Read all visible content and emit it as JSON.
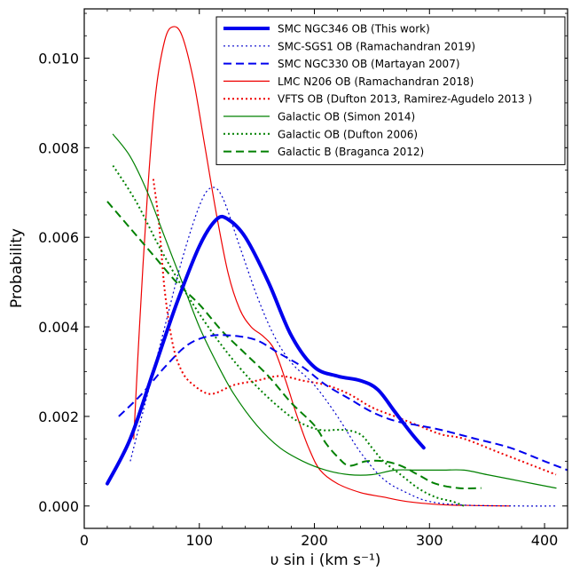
{
  "chart_data": {
    "type": "line",
    "xlabel": "υ sin i (km s⁻¹)",
    "ylabel": "Probability",
    "xlim": [
      0,
      420
    ],
    "ylim": [
      -0.0005,
      0.0111
    ],
    "xticks": [
      0,
      100,
      200,
      300,
      400
    ],
    "xtick_labels": [
      "0",
      "100",
      "200",
      "300",
      "400"
    ],
    "yticks": [
      0.0,
      0.002,
      0.004,
      0.006,
      0.008,
      0.01
    ],
    "ytick_labels": [
      "0.000",
      "0.002",
      "0.004",
      "0.006",
      "0.008",
      "0.010"
    ],
    "grid": false,
    "legend_position": "top-right",
    "series": [
      {
        "name": "SMC NGC346 OB (This work)",
        "color": "#0000ee",
        "style": "solid",
        "width": 4,
        "points": [
          [
            20,
            0.0005
          ],
          [
            40,
            0.0015
          ],
          [
            60,
            0.003
          ],
          [
            80,
            0.0045
          ],
          [
            100,
            0.0058
          ],
          [
            115,
            0.0064
          ],
          [
            125,
            0.0064
          ],
          [
            140,
            0.006
          ],
          [
            160,
            0.005
          ],
          [
            180,
            0.0038
          ],
          [
            200,
            0.0031
          ],
          [
            220,
            0.0029
          ],
          [
            240,
            0.0028
          ],
          [
            255,
            0.0026
          ],
          [
            270,
            0.0021
          ],
          [
            285,
            0.0016
          ],
          [
            295,
            0.0013
          ]
        ]
      },
      {
        "name": "SMC-SGS1 OB (Ramachandran 2019)",
        "color": "#0000cc",
        "style": "dotted",
        "width": 1.2,
        "points": [
          [
            40,
            0.001
          ],
          [
            55,
            0.0025
          ],
          [
            70,
            0.004
          ],
          [
            85,
            0.0055
          ],
          [
            100,
            0.0067
          ],
          [
            110,
            0.0071
          ],
          [
            120,
            0.0069
          ],
          [
            135,
            0.0058
          ],
          [
            150,
            0.0047
          ],
          [
            165,
            0.0038
          ],
          [
            180,
            0.0032
          ],
          [
            200,
            0.0027
          ],
          [
            220,
            0.002
          ],
          [
            240,
            0.0012
          ],
          [
            260,
            0.0006
          ],
          [
            280,
            0.0003
          ],
          [
            300,
            0.0001
          ],
          [
            330,
            2e-05
          ],
          [
            380,
            0.0
          ],
          [
            410,
            0.0
          ]
        ]
      },
      {
        "name": "SMC NGC330 OB (Martayan 2007)",
        "color": "#0000ee",
        "style": "dashed",
        "width": 2,
        "points": [
          [
            30,
            0.002
          ],
          [
            50,
            0.0025
          ],
          [
            70,
            0.0031
          ],
          [
            90,
            0.0036
          ],
          [
            110,
            0.0038
          ],
          [
            130,
            0.0038
          ],
          [
            150,
            0.0037
          ],
          [
            170,
            0.0034
          ],
          [
            190,
            0.0031
          ],
          [
            210,
            0.0027
          ],
          [
            230,
            0.0024
          ],
          [
            250,
            0.0021
          ],
          [
            270,
            0.0019
          ],
          [
            290,
            0.0018
          ],
          [
            310,
            0.0017
          ],
          [
            340,
            0.0015
          ],
          [
            370,
            0.0013
          ],
          [
            400,
            0.001
          ],
          [
            420,
            0.0008
          ]
        ]
      },
      {
        "name": "LMC N206 OB (Ramachandran 2018)",
        "color": "#ee0000",
        "style": "solid",
        "width": 1.2,
        "points": [
          [
            43,
            0.0015
          ],
          [
            48,
            0.004
          ],
          [
            55,
            0.007
          ],
          [
            62,
            0.0092
          ],
          [
            70,
            0.0104
          ],
          [
            77,
            0.0107
          ],
          [
            85,
            0.0105
          ],
          [
            95,
            0.0095
          ],
          [
            105,
            0.008
          ],
          [
            115,
            0.0065
          ],
          [
            125,
            0.0052
          ],
          [
            135,
            0.0044
          ],
          [
            145,
            0.004
          ],
          [
            155,
            0.0038
          ],
          [
            165,
            0.0035
          ],
          [
            175,
            0.0028
          ],
          [
            185,
            0.002
          ],
          [
            195,
            0.0013
          ],
          [
            205,
            0.0008
          ],
          [
            220,
            0.0005
          ],
          [
            240,
            0.0003
          ],
          [
            260,
            0.0002
          ],
          [
            280,
            0.0001
          ],
          [
            310,
            3e-05
          ],
          [
            340,
            1e-05
          ],
          [
            370,
            0.0
          ]
        ]
      },
      {
        "name": "VFTS OB (Dufton 2013, Ramirez-Agudelo 2013 )",
        "color": "#ee0000",
        "style": "dotted",
        "width": 2,
        "points": [
          [
            60,
            0.0073
          ],
          [
            65,
            0.0063
          ],
          [
            70,
            0.0048
          ],
          [
            77,
            0.0036
          ],
          [
            85,
            0.003
          ],
          [
            95,
            0.0027
          ],
          [
            110,
            0.0025
          ],
          [
            130,
            0.0027
          ],
          [
            150,
            0.0028
          ],
          [
            170,
            0.0029
          ],
          [
            190,
            0.0028
          ],
          [
            210,
            0.0027
          ],
          [
            230,
            0.0025
          ],
          [
            250,
            0.0022
          ],
          [
            270,
            0.002
          ],
          [
            290,
            0.0018
          ],
          [
            310,
            0.0016
          ],
          [
            330,
            0.0015
          ],
          [
            360,
            0.0012
          ],
          [
            390,
            0.0009
          ],
          [
            410,
            0.0007
          ]
        ]
      },
      {
        "name": "Galactic OB (Simon 2014)",
        "color": "#008000",
        "style": "solid",
        "width": 1.2,
        "points": [
          [
            25,
            0.0083
          ],
          [
            40,
            0.0078
          ],
          [
            55,
            0.007
          ],
          [
            70,
            0.006
          ],
          [
            85,
            0.005
          ],
          [
            100,
            0.004
          ],
          [
            115,
            0.0032
          ],
          [
            130,
            0.0025
          ],
          [
            150,
            0.0018
          ],
          [
            170,
            0.0013
          ],
          [
            190,
            0.001
          ],
          [
            210,
            0.0008
          ],
          [
            230,
            0.0007
          ],
          [
            250,
            0.0007
          ],
          [
            270,
            0.0008
          ],
          [
            290,
            0.0008
          ],
          [
            310,
            0.0008
          ],
          [
            330,
            0.0008
          ],
          [
            350,
            0.0007
          ],
          [
            370,
            0.0006
          ],
          [
            390,
            0.0005
          ],
          [
            410,
            0.0004
          ]
        ]
      },
      {
        "name": "Galactic OB (Dufton 2006)",
        "color": "#008000",
        "style": "dotted",
        "width": 2,
        "points": [
          [
            25,
            0.0076
          ],
          [
            45,
            0.0068
          ],
          [
            65,
            0.0058
          ],
          [
            85,
            0.0049
          ],
          [
            105,
            0.0041
          ],
          [
            125,
            0.0034
          ],
          [
            145,
            0.0028
          ],
          [
            165,
            0.0023
          ],
          [
            185,
            0.0019
          ],
          [
            205,
            0.0017
          ],
          [
            225,
            0.0017
          ],
          [
            240,
            0.0016
          ],
          [
            250,
            0.0013
          ],
          [
            260,
            0.001
          ],
          [
            275,
            0.0007
          ],
          [
            290,
            0.0004
          ],
          [
            305,
            0.0002
          ],
          [
            320,
            0.0001
          ],
          [
            330,
            0.0
          ]
        ]
      },
      {
        "name": "Galactic B (Braganca 2012)",
        "color": "#008000",
        "style": "dashed",
        "width": 2,
        "points": [
          [
            20,
            0.0068
          ],
          [
            40,
            0.0062
          ],
          [
            60,
            0.0056
          ],
          [
            80,
            0.005
          ],
          [
            100,
            0.0045
          ],
          [
            120,
            0.0039
          ],
          [
            140,
            0.0034
          ],
          [
            160,
            0.0029
          ],
          [
            180,
            0.0023
          ],
          [
            200,
            0.0018
          ],
          [
            210,
            0.0014
          ],
          [
            220,
            0.0011
          ],
          [
            230,
            0.0009
          ],
          [
            245,
            0.001
          ],
          [
            260,
            0.001
          ],
          [
            275,
            0.0009
          ],
          [
            290,
            0.0007
          ],
          [
            305,
            0.0005
          ],
          [
            325,
            0.0004
          ],
          [
            345,
            0.0004
          ]
        ]
      }
    ]
  }
}
